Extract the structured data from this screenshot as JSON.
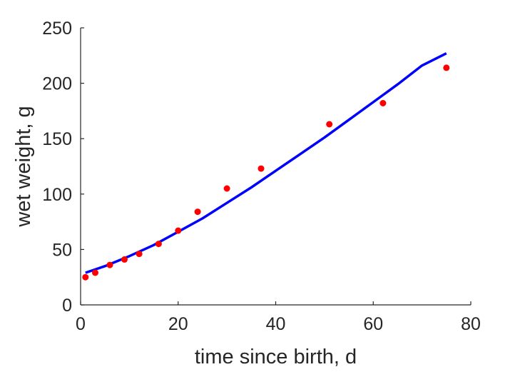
{
  "chart_data": {
    "type": "scatter",
    "xlabel": "time since birth, d",
    "ylabel": "wet weight, g",
    "xlim": [
      0,
      80
    ],
    "ylim": [
      0,
      250
    ],
    "xticks": [
      0,
      20,
      40,
      60,
      80
    ],
    "yticks": [
      0,
      50,
      100,
      150,
      200,
      250
    ],
    "grid": false,
    "legend": "none",
    "series": [
      {
        "kind": "points",
        "color": "#ff0000",
        "x": [
          1,
          3,
          6,
          9,
          12,
          16,
          20,
          24,
          30,
          37,
          51,
          62,
          75
        ],
        "y": [
          25,
          29,
          36,
          41,
          46,
          55,
          67,
          84,
          105,
          123,
          163,
          182,
          214
        ]
      },
      {
        "kind": "line",
        "color": "#0000ff",
        "x": [
          1,
          5,
          10,
          15,
          20,
          25,
          30,
          35,
          40,
          45,
          50,
          55,
          60,
          65,
          70,
          75
        ],
        "y": [
          29,
          35,
          44,
          54,
          66,
          78,
          92,
          106,
          121,
          136,
          151,
          167,
          183,
          199,
          216,
          227
        ]
      }
    ]
  }
}
